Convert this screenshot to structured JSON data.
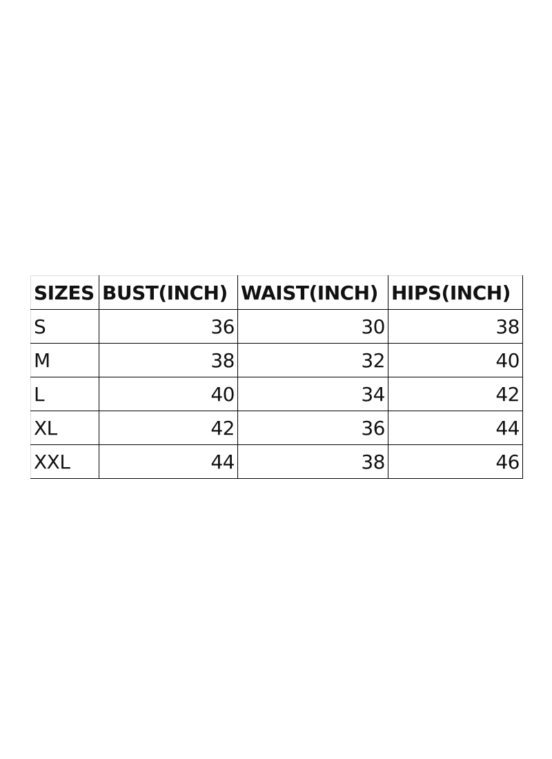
{
  "table": {
    "headers": [
      "SIZES",
      "BUST(INCH)",
      "WAIST(INCH)",
      "HIPS(INCH)"
    ],
    "rows": [
      [
        "S",
        "36",
        "30",
        "38"
      ],
      [
        "M",
        "38",
        "32",
        "40"
      ],
      [
        "L",
        "40",
        "34",
        "42"
      ],
      [
        "XL",
        "42",
        "36",
        "44"
      ],
      [
        "XXL",
        "44",
        "38",
        "46"
      ]
    ]
  }
}
